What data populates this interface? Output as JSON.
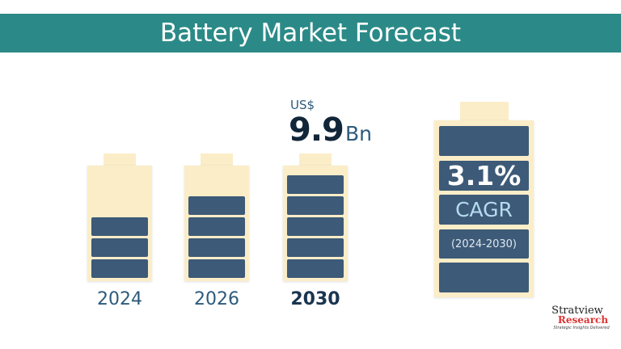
{
  "header": {
    "title": "Battery Market Forecast"
  },
  "batteries": [
    {
      "year": "2024",
      "filled_segments": 3,
      "total_segments": 5
    },
    {
      "year": "2026",
      "filled_segments": 4,
      "total_segments": 5
    },
    {
      "year": "2030",
      "filled_segments": 5,
      "total_segments": 5
    }
  ],
  "market_value": {
    "currency": "US$",
    "value": "9.9",
    "unit": "Bn"
  },
  "cagr": {
    "value": "3.1%",
    "label": "CAGR",
    "period": "(2024-2030)"
  },
  "logo": {
    "name": "Stratview",
    "sub": "Research",
    "tagline": "Strategic Insights Delivered"
  },
  "colors": {
    "header": "#2b8a87",
    "battery_body": "#faedc8",
    "segment": "#3d5a78"
  }
}
